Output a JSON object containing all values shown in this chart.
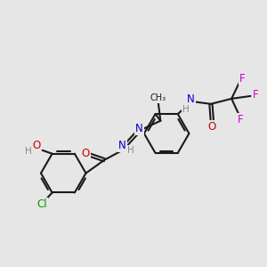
{
  "bg_color": "#e6e6e6",
  "bond_color": "#1a1a1a",
  "bond_lw": 1.5,
  "colors": {
    "N": "#0000cc",
    "O": "#cc0000",
    "F": "#cc00cc",
    "Cl": "#009900",
    "H": "#888888",
    "C": "#1a1a1a"
  },
  "fs": 8.5,
  "fss": 7.5
}
